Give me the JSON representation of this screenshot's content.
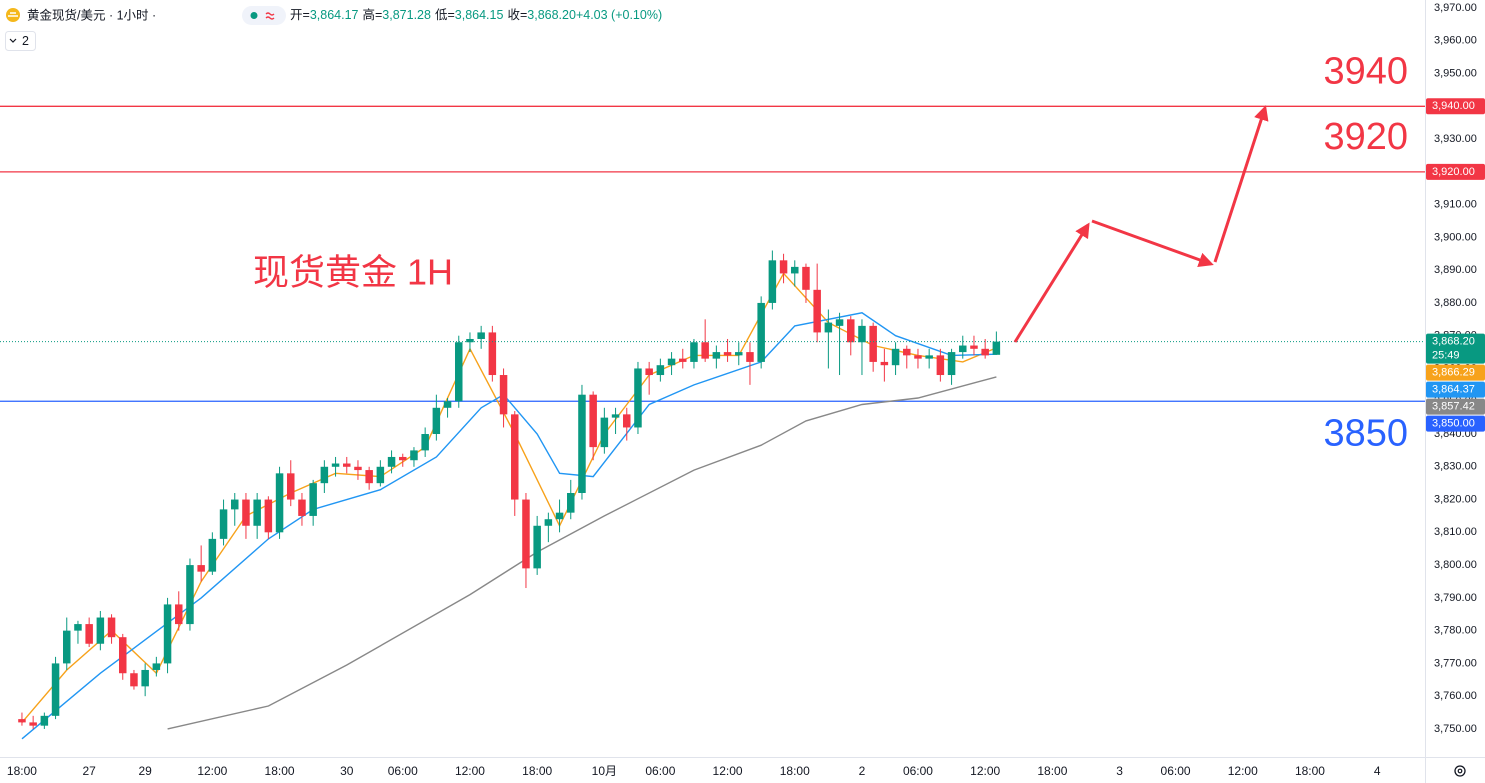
{
  "chart_data": {
    "type": "candlestick",
    "symbol": "黄金现货/美元 · 1小时 ·",
    "ohlc_legend": [
      {
        "label": "开=",
        "value": "3,864.17"
      },
      {
        "label": "高=",
        "value": "3,871.28"
      },
      {
        "label": "低=",
        "value": "3,864.15"
      },
      {
        "label": "收=",
        "value": "3,868.20"
      },
      {
        "label": "",
        "value": "+4.03 (+0.10%)"
      }
    ],
    "indicator_count": "2",
    "annotation": "现货黄金 1H",
    "up_color": "#089981",
    "down_color": "#f23645",
    "xlim": [
      -1.96,
      125.27
    ],
    "ylim": [
      3741.44,
      3972.44
    ],
    "xticks": [
      {
        "value": 0,
        "label": "18:00"
      },
      {
        "value": 6,
        "label": "27"
      },
      {
        "value": 11,
        "label": "29"
      },
      {
        "value": 17,
        "label": "12:00"
      },
      {
        "value": 23,
        "label": "18:00"
      },
      {
        "value": 29,
        "label": "30"
      },
      {
        "value": 34,
        "label": "06:00"
      },
      {
        "value": 40,
        "label": "12:00"
      },
      {
        "value": 46,
        "label": "18:00"
      },
      {
        "value": 52,
        "label": "10月"
      },
      {
        "value": 57,
        "label": "06:00"
      },
      {
        "value": 63,
        "label": "12:00"
      },
      {
        "value": 69,
        "label": "18:00"
      },
      {
        "value": 75,
        "label": "2"
      },
      {
        "value": 80,
        "label": "06:00"
      },
      {
        "value": 86,
        "label": "12:00"
      },
      {
        "value": 92,
        "label": "18:00"
      },
      {
        "value": 98,
        "label": "3"
      },
      {
        "value": 103,
        "label": "06:00"
      },
      {
        "value": 109,
        "label": "12:00"
      },
      {
        "value": 115,
        "label": "18:00"
      },
      {
        "value": 121,
        "label": "4"
      }
    ],
    "yticks": [
      {
        "value": 3750,
        "label": "3,750.00"
      },
      {
        "value": 3760,
        "label": "3,760.00"
      },
      {
        "value": 3770,
        "label": "3,770.00"
      },
      {
        "value": 3780,
        "label": "3,780.00"
      },
      {
        "value": 3790,
        "label": "3,790.00"
      },
      {
        "value": 3800,
        "label": "3,800.00"
      },
      {
        "value": 3810,
        "label": "3,810.00"
      },
      {
        "value": 3820,
        "label": "3,820.00"
      },
      {
        "value": 3830,
        "label": "3,830.00"
      },
      {
        "value": 3840,
        "label": "3,840.00"
      },
      {
        "value": 3850,
        "label": "3,850.00"
      },
      {
        "value": 3860,
        "label": "3,860.00"
      },
      {
        "value": 3870,
        "label": "3,870.00"
      },
      {
        "value": 3880,
        "label": "3,880.00"
      },
      {
        "value": 3890,
        "label": "3,890.00"
      },
      {
        "value": 3900,
        "label": "3,900.00"
      },
      {
        "value": 3910,
        "label": "3,910.00"
      },
      {
        "value": 3920,
        "label": "3,920.00"
      },
      {
        "value": 3930,
        "label": "3,930.00"
      },
      {
        "value": 3940,
        "label": "3,940.00"
      },
      {
        "value": 3950,
        "label": "3,950.00"
      },
      {
        "value": 3960,
        "label": "3,960.00"
      },
      {
        "value": 3970,
        "label": "3,970.00"
      }
    ],
    "ohlc": [
      [
        3753,
        3755,
        3751,
        3752
      ],
      [
        3752,
        3754,
        3750,
        3751
      ],
      [
        3751,
        3755,
        3750,
        3754
      ],
      [
        3754,
        3772,
        3753,
        3770
      ],
      [
        3770,
        3784,
        3768,
        3780
      ],
      [
        3780,
        3783,
        3776,
        3782
      ],
      [
        3782,
        3784,
        3775,
        3776
      ],
      [
        3776,
        3786,
        3774,
        3784
      ],
      [
        3784,
        3785,
        3776,
        3778
      ],
      [
        3778,
        3779,
        3765,
        3767
      ],
      [
        3767,
        3768,
        3762,
        3763
      ],
      [
        3763,
        3770,
        3760,
        3768
      ],
      [
        3768,
        3772,
        3766,
        3770
      ],
      [
        3770,
        3790,
        3767,
        3788
      ],
      [
        3788,
        3792,
        3780,
        3782
      ],
      [
        3782,
        3802,
        3780,
        3800
      ],
      [
        3800,
        3806,
        3795,
        3798
      ],
      [
        3798,
        3810,
        3797,
        3808
      ],
      [
        3808,
        3820,
        3806,
        3817
      ],
      [
        3817,
        3822,
        3812,
        3820
      ],
      [
        3820,
        3822,
        3808,
        3812
      ],
      [
        3812,
        3822,
        3808,
        3820
      ],
      [
        3820,
        3821,
        3808,
        3810
      ],
      [
        3810,
        3830,
        3808,
        3828
      ],
      [
        3828,
        3832,
        3818,
        3820
      ],
      [
        3820,
        3822,
        3812,
        3815
      ],
      [
        3815,
        3826,
        3812,
        3825
      ],
      [
        3825,
        3832,
        3822,
        3830
      ],
      [
        3830,
        3833,
        3827,
        3831
      ],
      [
        3831,
        3833,
        3828,
        3830
      ],
      [
        3830,
        3832,
        3826,
        3829
      ],
      [
        3829,
        3830,
        3823,
        3825
      ],
      [
        3825,
        3832,
        3824,
        3830
      ],
      [
        3830,
        3835,
        3828,
        3833
      ],
      [
        3833,
        3834,
        3830,
        3832
      ],
      [
        3832,
        3836,
        3830,
        3835
      ],
      [
        3835,
        3842,
        3833,
        3840
      ],
      [
        3840,
        3852,
        3838,
        3848
      ],
      [
        3848,
        3851,
        3845,
        3850
      ],
      [
        3850,
        3870,
        3848,
        3868
      ],
      [
        3868,
        3871,
        3865,
        3869
      ],
      [
        3869,
        3873,
        3866,
        3871
      ],
      [
        3871,
        3873,
        3856,
        3858
      ],
      [
        3858,
        3860,
        3842,
        3846
      ],
      [
        3846,
        3847,
        3815,
        3820
      ],
      [
        3820,
        3822,
        3793,
        3799
      ],
      [
        3799,
        3815,
        3797,
        3812
      ],
      [
        3812,
        3816,
        3807,
        3814
      ],
      [
        3814,
        3820,
        3810,
        3816
      ],
      [
        3816,
        3826,
        3814,
        3822
      ],
      [
        3822,
        3855,
        3820,
        3852
      ],
      [
        3852,
        3853,
        3832,
        3836
      ],
      [
        3836,
        3848,
        3834,
        3845
      ],
      [
        3845,
        3848,
        3840,
        3846
      ],
      [
        3846,
        3848,
        3838,
        3842
      ],
      [
        3842,
        3862,
        3840,
        3860
      ],
      [
        3860,
        3862,
        3852,
        3858
      ],
      [
        3858,
        3863,
        3856,
        3861
      ],
      [
        3861,
        3865,
        3858,
        3863
      ],
      [
        3863,
        3866,
        3860,
        3862
      ],
      [
        3862,
        3869,
        3860,
        3868
      ],
      [
        3868,
        3875,
        3862,
        3863
      ],
      [
        3863,
        3867,
        3860,
        3865
      ],
      [
        3865,
        3869,
        3862,
        3864
      ],
      [
        3864,
        3868,
        3861,
        3865
      ],
      [
        3865,
        3868,
        3855,
        3862
      ],
      [
        3862,
        3882,
        3860,
        3880
      ],
      [
        3880,
        3896,
        3878,
        3893
      ],
      [
        3893,
        3895,
        3886,
        3889
      ],
      [
        3889,
        3893,
        3885,
        3891
      ],
      [
        3891,
        3892,
        3880,
        3884
      ],
      [
        3884,
        3892,
        3868,
        3871
      ],
      [
        3871,
        3878,
        3860,
        3874
      ],
      [
        3873,
        3877,
        3858,
        3875
      ],
      [
        3875,
        3876,
        3864,
        3868
      ],
      [
        3868,
        3875,
        3858,
        3873
      ],
      [
        3873,
        3874,
        3859,
        3862
      ],
      [
        3862,
        3866,
        3856,
        3861
      ],
      [
        3861,
        3868,
        3858,
        3866
      ],
      [
        3866,
        3867,
        3860,
        3864
      ],
      [
        3864,
        3866,
        3860,
        3863
      ],
      [
        3863,
        3866,
        3860,
        3864
      ],
      [
        3864,
        3866,
        3856,
        3858
      ],
      [
        3858,
        3866,
        3855,
        3865
      ],
      [
        3865,
        3870,
        3863,
        3867
      ],
      [
        3867,
        3870,
        3864,
        3866
      ],
      [
        3866,
        3869,
        3863,
        3864
      ],
      [
        3864.17,
        3871.28,
        3864.15,
        3868.2
      ]
    ],
    "last_price_label": "3,868.20",
    "countdown": "25:49",
    "lines": [
      {
        "color": "#f7a21b",
        "x": [
          0,
          4,
          8,
          12,
          16,
          20,
          24,
          28,
          32,
          36,
          40,
          44,
          48,
          52,
          56,
          60,
          64,
          68,
          72,
          76,
          80,
          84,
          87
        ],
        "values": [
          3752,
          3768,
          3780,
          3767,
          3795,
          3815,
          3822,
          3828,
          3827,
          3836,
          3866,
          3840,
          3812,
          3840,
          3858,
          3864,
          3864,
          3889,
          3874,
          3867,
          3864,
          3862,
          3866.29
        ],
        "badge": "3,866.29"
      },
      {
        "color": "#2196f3",
        "x": [
          0,
          7,
          16,
          22,
          26,
          32,
          37,
          41,
          43,
          46,
          48,
          51,
          56,
          60,
          66,
          69,
          75,
          78,
          83,
          87
        ],
        "values": [
          3747,
          3767,
          3790,
          3808,
          3817,
          3823,
          3833,
          3848,
          3852,
          3840,
          3828,
          3827,
          3849,
          3855,
          3862,
          3873,
          3877,
          3870,
          3864,
          3864.37
        ],
        "badge": "3,864.37"
      },
      {
        "color": "#888888",
        "x": [
          13,
          22,
          29,
          40,
          46,
          52,
          60,
          66,
          70,
          75,
          80,
          87
        ],
        "values": [
          3750,
          3757,
          3769.5,
          3791,
          3804,
          3815,
          3829,
          3836.6,
          3844,
          3849,
          3851,
          3857.42
        ],
        "badge": "3,857.42"
      }
    ],
    "hlines": [
      {
        "value": 3940,
        "color": "#f23645",
        "label": "3940",
        "badge": "3,940.00",
        "label_position": "above"
      },
      {
        "value": 3920,
        "color": "#f23645",
        "label": "3920",
        "badge": "3,920.00",
        "label_position": "above"
      },
      {
        "value": 3850,
        "color": "#2962ff",
        "label": "3850",
        "badge": "3,850.00",
        "label_position": "below"
      }
    ]
  }
}
